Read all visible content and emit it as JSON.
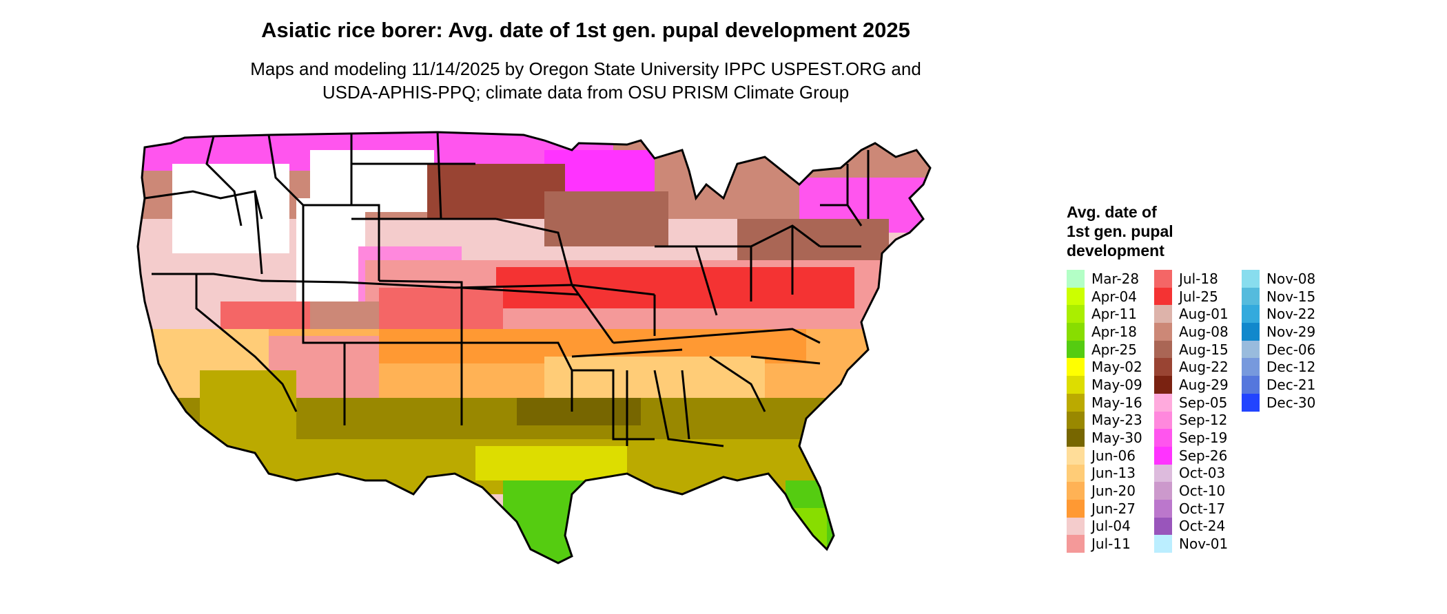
{
  "title": "Asiatic rice borer: Avg. date of 1st gen. pupal development 2025",
  "subtitle_line1": "Maps and modeling 11/14/2025 by Oregon State University IPPC USPEST.ORG and",
  "subtitle_line2": "USDA-APHIS-PPQ; climate data from OSU PRISM Climate Group",
  "legend": {
    "title_line1": "Avg. date of",
    "title_line2": "1st gen. pupal",
    "title_line3": "development",
    "items": [
      {
        "label": "Mar-28",
        "color": "#b3ffc6"
      },
      {
        "label": "Apr-04",
        "color": "#ccff00"
      },
      {
        "label": "Apr-11",
        "color": "#aaee00"
      },
      {
        "label": "Apr-18",
        "color": "#88dd00"
      },
      {
        "label": "Apr-25",
        "color": "#55cc11"
      },
      {
        "label": "May-02",
        "color": "#ffff00"
      },
      {
        "label": "May-09",
        "color": "#dddd00"
      },
      {
        "label": "May-16",
        "color": "#bbaa00"
      },
      {
        "label": "May-23",
        "color": "#998800"
      },
      {
        "label": "May-30",
        "color": "#776600"
      },
      {
        "label": "Jun-06",
        "color": "#ffdd99"
      },
      {
        "label": "Jun-13",
        "color": "#ffcc77"
      },
      {
        "label": "Jun-20",
        "color": "#ffb255"
      },
      {
        "label": "Jun-27",
        "color": "#ff9933"
      },
      {
        "label": "Jul-04",
        "color": "#f4cccc"
      },
      {
        "label": "Jul-11",
        "color": "#f49999"
      },
      {
        "label": "Jul-18",
        "color": "#f46666"
      },
      {
        "label": "Jul-25",
        "color": "#f43333"
      },
      {
        "label": "Aug-01",
        "color": "#ddb3aa"
      },
      {
        "label": "Aug-08",
        "color": "#cc8877"
      },
      {
        "label": "Aug-15",
        "color": "#aa6655"
      },
      {
        "label": "Aug-22",
        "color": "#994433"
      },
      {
        "label": "Aug-29",
        "color": "#7a2211"
      },
      {
        "label": "Sep-05",
        "color": "#ffaadd"
      },
      {
        "label": "Sep-12",
        "color": "#ff88dd"
      },
      {
        "label": "Sep-19",
        "color": "#ff55ee"
      },
      {
        "label": "Sep-26",
        "color": "#ff33ff"
      },
      {
        "label": "Oct-03",
        "color": "#ddbbdd"
      },
      {
        "label": "Oct-10",
        "color": "#cc99cc"
      },
      {
        "label": "Oct-17",
        "color": "#bb77cc"
      },
      {
        "label": "Oct-24",
        "color": "#9955bb"
      },
      {
        "label": "Nov-01",
        "color": "#bbeeff"
      },
      {
        "label": "Nov-08",
        "color": "#88ddee"
      },
      {
        "label": "Nov-15",
        "color": "#55bbdd"
      },
      {
        "label": "Nov-22",
        "color": "#33aadd"
      },
      {
        "label": "Nov-29",
        "color": "#1188cc"
      },
      {
        "label": "Dec-06",
        "color": "#99bbdd"
      },
      {
        "label": "Dec-12",
        "color": "#7799dd"
      },
      {
        "label": "Dec-21",
        "color": "#5577dd"
      },
      {
        "label": "Dec-30",
        "color": "#2244ff"
      }
    ]
  }
}
